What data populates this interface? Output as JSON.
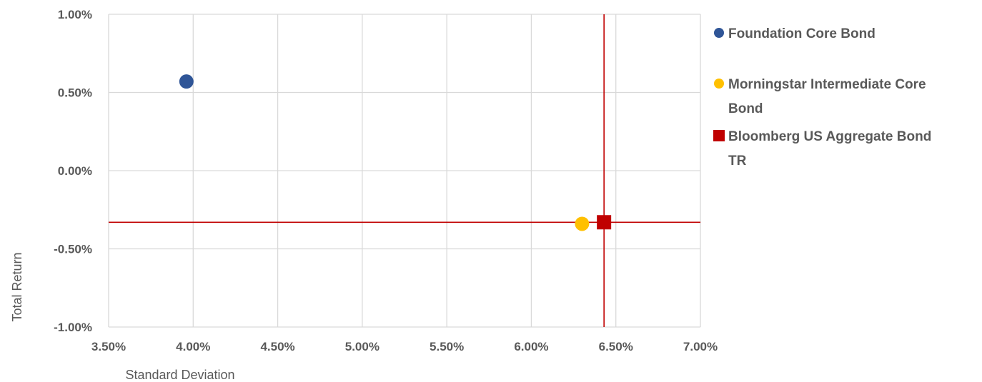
{
  "chart_data": {
    "type": "scatter",
    "title": "",
    "xlabel": "Standard Deviation",
    "ylabel": "Total Return",
    "xlim": [
      3.5,
      7.0
    ],
    "ylim": [
      -1.0,
      1.0
    ],
    "x_ticks": [
      3.5,
      4.0,
      4.5,
      5.0,
      5.5,
      6.0,
      6.5,
      7.0
    ],
    "y_ticks": [
      1.0,
      0.5,
      0.0,
      -0.5,
      -1.0
    ],
    "x_tick_labels": [
      "3.50%",
      "4.00%",
      "4.50%",
      "5.00%",
      "5.50%",
      "6.00%",
      "6.50%",
      "7.00%"
    ],
    "y_tick_labels": [
      "1.00%",
      "0.50%",
      "0.00%",
      "-0.50%",
      "-1.00%"
    ],
    "grid": true,
    "legend_position": "right",
    "series": [
      {
        "name": "Foundation Core Bond",
        "legend_lines": [
          "Foundation Core Bond"
        ],
        "marker": "circle",
        "color": "#2F5597",
        "x": 3.96,
        "y": 0.57
      },
      {
        "name": "Morningstar Intermediate Core Bond",
        "legend_lines": [
          "Morningstar Intermediate Core",
          "Bond"
        ],
        "marker": "circle",
        "color": "#FFC000",
        "x": 6.3,
        "y": -0.34
      },
      {
        "name": "Bloomberg US Aggregate Bond TR",
        "legend_lines": [
          "Bloomberg US Aggregate Bond",
          "TR"
        ],
        "marker": "square",
        "color": "#C00000",
        "x": 6.43,
        "y": -0.33
      }
    ],
    "reference_lines": {
      "color": "#C00000",
      "x": 6.43,
      "y": -0.33
    }
  }
}
